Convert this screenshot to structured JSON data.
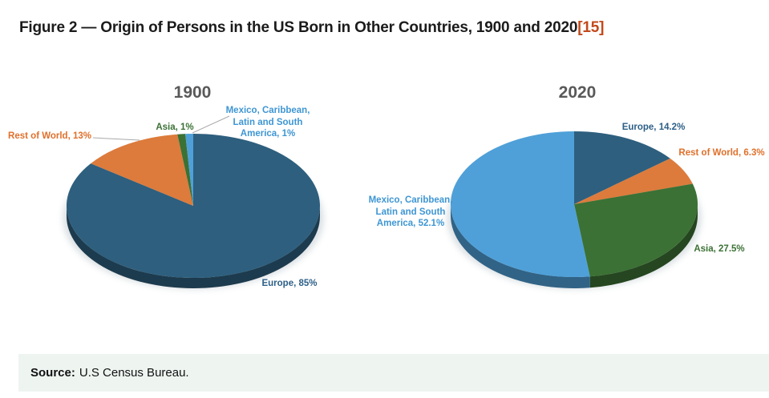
{
  "header": {
    "title": "Figure 2 — Origin of Persons in the US Born in Other Countries, 1900 and 2020",
    "citation": "[15]",
    "citation_color": "#c2491c"
  },
  "source": {
    "label": "Source:",
    "text": "U.S Census Bureau."
  },
  "colors": {
    "figure_title": "#1b1b1b",
    "chart_title_gray": "#595959",
    "europe_slice": "#2E5F7E",
    "rest_of_world_slice": "#DC7B3C",
    "asia_slice": "#3B7134",
    "mexico_slice": "#4FA0D8",
    "label_europe": "#2d5f87",
    "label_rest_of_world": "#e0702b",
    "label_asia": "#3b7134",
    "label_mexico": "#3e96d3",
    "source_bg": "#eef5f1",
    "leader_line": "#a9a9a9"
  },
  "chart_data": [
    {
      "type": "pie",
      "title": "1900",
      "unit": "%",
      "start_angle_deg": 0,
      "direction": "clockwise",
      "slices": [
        {
          "name": "Europe",
          "value": 85,
          "color": "#2E5F7E"
        },
        {
          "name": "Rest of World",
          "value": 13,
          "color": "#DC7B3C"
        },
        {
          "name": "Asia",
          "value": 1,
          "color": "#3B7134"
        },
        {
          "name": "Mexico, Caribbean, Latin and South America",
          "value": 1,
          "color": "#4FA0D8"
        }
      ],
      "callouts": {
        "europe": "Europe, 85%",
        "rest_of_world": "Rest of World, 13%",
        "asia": "Asia, 1%",
        "mexico": "Mexico, Caribbean,\nLatin and South\nAmerica, 1%"
      }
    },
    {
      "type": "pie",
      "title": "2020",
      "unit": "%",
      "start_angle_deg": 0,
      "direction": "clockwise",
      "slices": [
        {
          "name": "Europe",
          "value": 14.2,
          "color": "#2E5F7E"
        },
        {
          "name": "Rest of World",
          "value": 6.3,
          "color": "#DC7B3C"
        },
        {
          "name": "Asia",
          "value": 27.5,
          "color": "#3B7134"
        },
        {
          "name": "Mexico, Caribbean, Latin and South America",
          "value": 52.1,
          "color": "#4FA0D8"
        }
      ],
      "callouts": {
        "europe": "Europe, 14.2%",
        "rest_of_world": "Rest of World, 6.3%",
        "asia": "Asia, 27.5%",
        "mexico": "Mexico, Caribbean,\nLatin and South\nAmerica, 52.1%"
      }
    }
  ]
}
